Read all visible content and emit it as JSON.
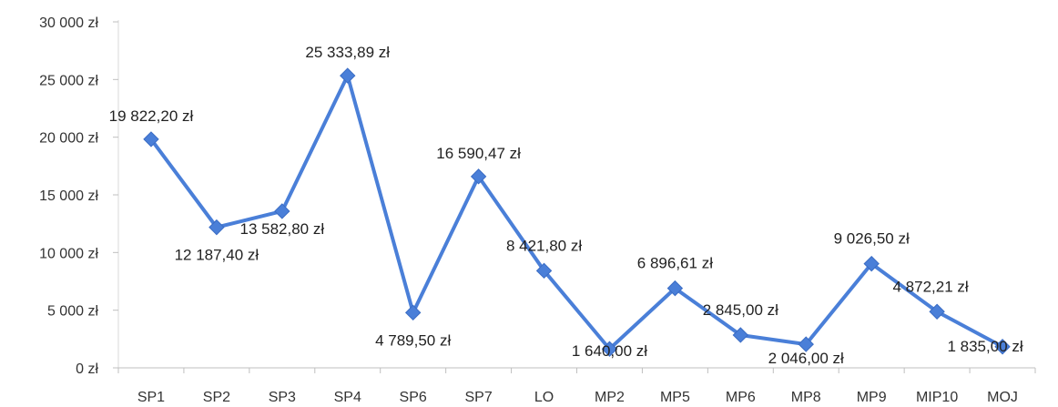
{
  "chart_data": {
    "type": "line",
    "title": "",
    "xlabel": "",
    "ylabel": "",
    "ylim": [
      0,
      30000
    ],
    "grid": false,
    "legend": "none",
    "line_color": "#4A7FD8",
    "marker": "diamond",
    "y_ticks": [
      {
        "value": 0,
        "label": "0 zł"
      },
      {
        "value": 5000,
        "label": "5 000 zł"
      },
      {
        "value": 10000,
        "label": "10 000 zł"
      },
      {
        "value": 15000,
        "label": "15 000 zł"
      },
      {
        "value": 20000,
        "label": "20 000 zł"
      },
      {
        "value": 25000,
        "label": "25 000 zł"
      },
      {
        "value": 30000,
        "label": "30 000 zł"
      }
    ],
    "categories": [
      "SP1",
      "SP2",
      "SP3",
      "SP4",
      "SP6",
      "SP7",
      "LO",
      "MP2",
      "MP5",
      "MP6",
      "MP8",
      "MP9",
      "MIP10",
      "MOJ"
    ],
    "values": [
      19822.2,
      12187.4,
      13582.8,
      25333.89,
      4789.5,
      16590.47,
      8421.8,
      1640.0,
      6896.61,
      2845.0,
      2046.0,
      9026.5,
      4872.21,
      1835.0
    ],
    "data_labels": [
      "19 822,20 zł",
      "12 187,40 zł",
      "13 582,80 zł",
      "25 333,89 zł",
      "4 789,50 zł",
      "16 590,47 zł",
      "8 421,80 zł",
      "1 640,00 zł",
      "6 896,61 zł",
      "2 845,00 zł",
      "2 046,00 zł",
      "9 026,50 zł",
      "4 872,21 zł",
      "1 835,00 zł"
    ]
  }
}
